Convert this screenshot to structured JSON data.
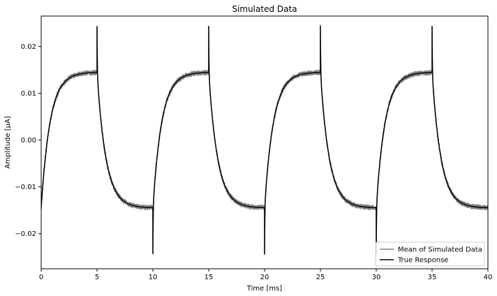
{
  "chart_data": {
    "type": "line",
    "title": "Simulated Data",
    "xlabel": "Time [ms]",
    "ylabel": "Amplitude [μA]",
    "xlim": [
      0,
      40
    ],
    "ylim": [
      -0.0275,
      0.0265
    ],
    "xticks": [
      0,
      5,
      10,
      15,
      20,
      25,
      30,
      35,
      40
    ],
    "xtick_labels": [
      "0",
      "5",
      "10",
      "15",
      "20",
      "25",
      "30",
      "35",
      "40"
    ],
    "yticks": [
      -0.02,
      -0.01,
      0.0,
      0.01,
      0.02
    ],
    "ytick_labels": [
      "−0.02",
      "−0.01",
      "0.00",
      "0.01",
      "0.02"
    ],
    "grid": false,
    "legend_position": "bottom-right",
    "series": [
      {
        "name": "Mean of Simulated Data",
        "color": "#808080",
        "style": "noisy",
        "noise_amplitude": 0.0005,
        "waveform": {
          "steady_state": 0.0145,
          "time_constant_ms": 0.8,
          "spike_peak": 0.0243,
          "spike_decay_ms": 0.025,
          "edges_ms": [
            5,
            10,
            15,
            20,
            25,
            30,
            35
          ],
          "initial_level": -0.0145,
          "initial_step": "up"
        }
      },
      {
        "name": "True Response",
        "color": "#000000",
        "style": "smooth",
        "waveform": {
          "steady_state": 0.0145,
          "time_constant_ms": 0.8,
          "spike_peak": 0.0243,
          "spike_decay_ms": 0.025,
          "edges_ms": [
            5,
            10,
            15,
            20,
            25,
            30,
            35
          ],
          "initial_level": -0.0145,
          "initial_step": "up"
        }
      }
    ]
  }
}
